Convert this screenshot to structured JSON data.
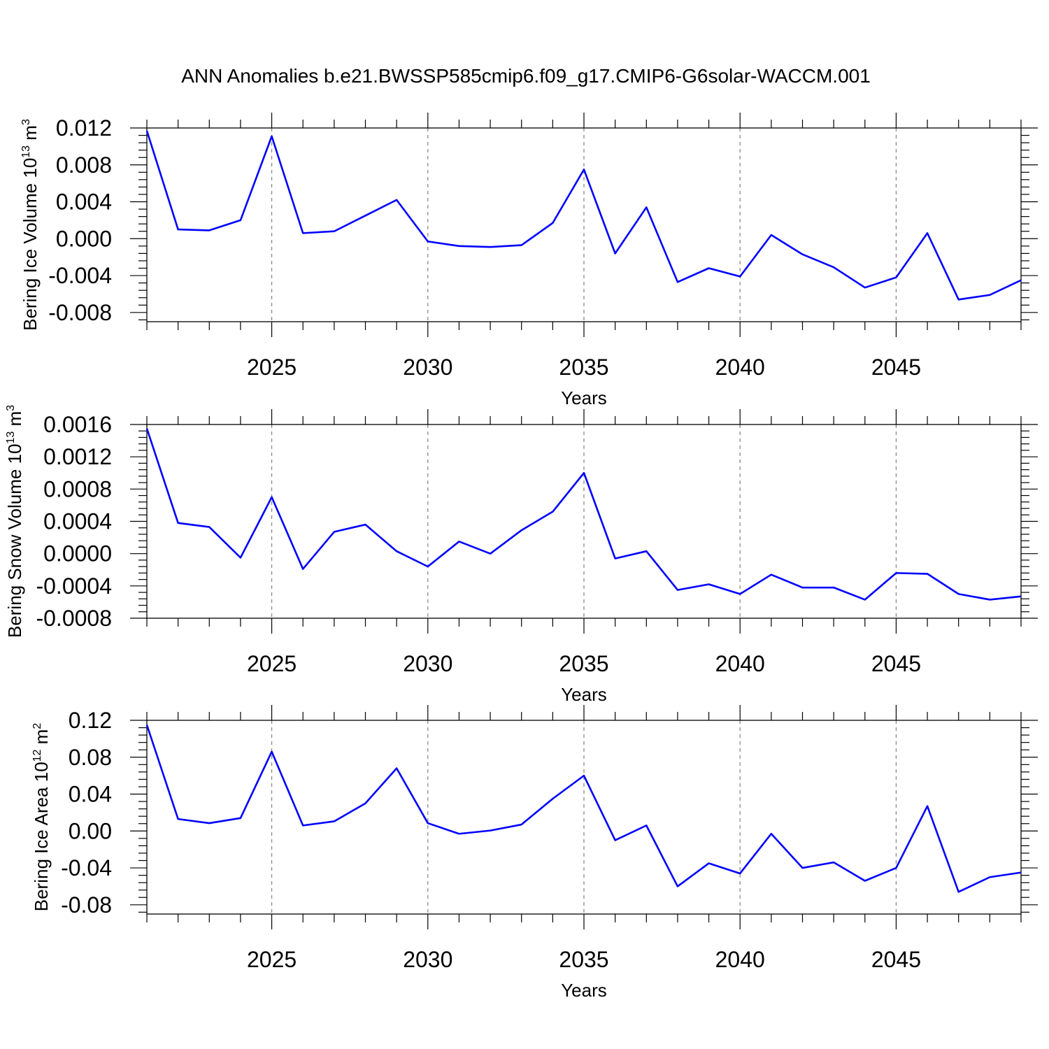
{
  "title": "ANN Anomalies b.e21.BWSSP585cmip6.f09_g17.CMIP6-G6solar-WACCM.001",
  "colors": {
    "line": "#0000ff",
    "grid": "#808080",
    "axis": "#000000"
  },
  "chart_data": [
    {
      "type": "line",
      "ylabel": "Bering Ice Volume 10",
      "ylabel_exp": "13",
      "ylabel_unit": " m",
      "ylabel_unit_exp": "3",
      "xlabel": "Years",
      "xlim": [
        2021,
        2049
      ],
      "ylim": [
        -0.009,
        0.012
      ],
      "x_ticks": [
        2025,
        2030,
        2035,
        2040,
        2045
      ],
      "x_tick_labels": [
        "2025",
        "2030",
        "2035",
        "2040",
        "2045"
      ],
      "y_ticks": [
        0.012,
        0.008,
        0.004,
        0.0,
        -0.004,
        -0.008
      ],
      "y_tick_labels": [
        "0.012",
        "0.008",
        "0.004",
        "0.000",
        "-0.004",
        "-0.008"
      ],
      "grid": "dashed vertical at major x ticks",
      "series": [
        {
          "x": [
            2021,
            2022,
            2023,
            2024,
            2025,
            2026,
            2027,
            2028,
            2029,
            2030,
            2031,
            2032,
            2033,
            2034,
            2035,
            2036,
            2037,
            2038,
            2039,
            2040,
            2041,
            2042,
            2043,
            2044,
            2045,
            2046,
            2047,
            2048,
            2049
          ],
          "values": [
            0.0117,
            0.001,
            0.0009,
            0.002,
            0.0111,
            0.0006,
            0.0008,
            0.0025,
            0.0042,
            -0.0003,
            -0.0008,
            -0.0009,
            -0.0007,
            0.0017,
            0.0075,
            -0.0016,
            0.0034,
            -0.0047,
            -0.0032,
            -0.0041,
            0.0004,
            -0.0017,
            -0.0031,
            -0.0053,
            -0.0042,
            0.0006,
            -0.0066,
            -0.0061,
            -0.0045
          ]
        }
      ]
    },
    {
      "type": "line",
      "ylabel": "Bering Snow Volume 10",
      "ylabel_exp": "13",
      "ylabel_unit": " m",
      "ylabel_unit_exp": "3",
      "xlabel": "Years",
      "xlim": [
        2021,
        2049
      ],
      "ylim": [
        -0.0008,
        0.0016
      ],
      "x_ticks": [
        2025,
        2030,
        2035,
        2040,
        2045
      ],
      "x_tick_labels": [
        "2025",
        "2030",
        "2035",
        "2040",
        "2045"
      ],
      "y_ticks": [
        0.0016,
        0.0012,
        0.0008,
        0.0004,
        0.0,
        -0.0004,
        -0.0008
      ],
      "y_tick_labels": [
        "0.0016",
        "0.0012",
        "0.0008",
        "0.0004",
        "0.0000",
        "-0.0004",
        "-0.0008"
      ],
      "grid": "dashed vertical at major x ticks",
      "series": [
        {
          "x": [
            2021,
            2022,
            2023,
            2024,
            2025,
            2026,
            2027,
            2028,
            2029,
            2030,
            2031,
            2032,
            2033,
            2034,
            2035,
            2036,
            2037,
            2038,
            2039,
            2040,
            2041,
            2042,
            2043,
            2044,
            2045,
            2046,
            2047,
            2048,
            2049
          ],
          "values": [
            0.00155,
            0.00038,
            0.00033,
            -5e-05,
            0.0007,
            -0.00019,
            0.00027,
            0.00036,
            3e-05,
            -0.00016,
            0.00015,
            0.0,
            0.00029,
            0.00052,
            0.001,
            -6e-05,
            3e-05,
            -0.00045,
            -0.00038,
            -0.0005,
            -0.00026,
            -0.00042,
            -0.00042,
            -0.00057,
            -0.00024,
            -0.00025,
            -0.0005,
            -0.00057,
            -0.00053
          ]
        }
      ]
    },
    {
      "type": "line",
      "ylabel": "Bering Ice Area 10",
      "ylabel_exp": "12",
      "ylabel_unit": " m",
      "ylabel_unit_exp": "2",
      "xlabel": "Years",
      "xlim": [
        2021,
        2049
      ],
      "ylim": [
        -0.09,
        0.12
      ],
      "x_ticks": [
        2025,
        2030,
        2035,
        2040,
        2045
      ],
      "x_tick_labels": [
        "2025",
        "2030",
        "2035",
        "2040",
        "2045"
      ],
      "y_ticks": [
        0.12,
        0.08,
        0.04,
        0.0,
        -0.04,
        -0.08
      ],
      "y_tick_labels": [
        "0.12",
        "0.08",
        "0.04",
        "0.00",
        "-0.04",
        "-0.08"
      ],
      "grid": "dashed vertical at major x ticks",
      "series": [
        {
          "x": [
            2021,
            2022,
            2023,
            2024,
            2025,
            2026,
            2027,
            2028,
            2029,
            2030,
            2031,
            2032,
            2033,
            2034,
            2035,
            2036,
            2037,
            2038,
            2039,
            2040,
            2041,
            2042,
            2043,
            2044,
            2045,
            2046,
            2047,
            2048,
            2049
          ],
          "values": [
            0.115,
            0.013,
            0.0085,
            0.014,
            0.086,
            0.006,
            0.0105,
            0.03,
            0.068,
            0.0085,
            -0.003,
            0.0005,
            0.007,
            0.035,
            0.06,
            -0.01,
            0.006,
            -0.06,
            -0.035,
            -0.046,
            -0.003,
            -0.04,
            -0.034,
            -0.054,
            -0.04,
            0.027,
            -0.066,
            -0.05,
            -0.045
          ]
        }
      ]
    }
  ]
}
